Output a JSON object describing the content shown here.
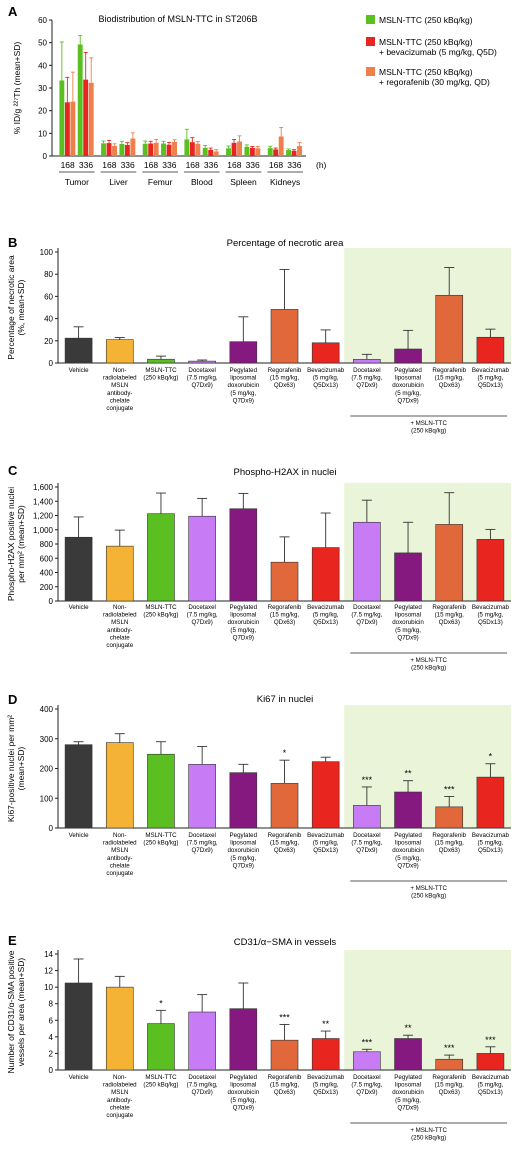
{
  "colors": {
    "bar": "#222222",
    "axis": "#222222",
    "green": "#5bbf21",
    "red": "#e8251e",
    "orange": "#ef7f4b",
    "dark_gray": "#3a3a3a",
    "yellow": "#f5b335",
    "lilac": "#c77bf4",
    "purple": "#86197f",
    "orange_dark": "#e0683b",
    "highlight": "#e9f4d8"
  },
  "common_labels": {
    "categories": [
      "Vehicle",
      "Non-\nradiolabeled\nMSLN\nantibody-\nchelate\nconjugate",
      "MSLN-TTC\n(250 kBq/kg)",
      "Docetaxel\n(7.5 mg/kg,\nQ7Dx9)",
      "Pegylated\nliposomal\ndoxorubicin\n(5 mg/kg,\nQ7Dx9)",
      "Regorafenib\n(15 mg/kg,\nQDx63)",
      "Bevacizumab\n(5 mg/kg,\nQ5Dx13)",
      "Docetaxel\n(7.5 mg/kg,\nQ7Dx9)",
      "Pegylated\nliposomal\ndoxorubicin\n(5 mg/kg,\nQ7Dx9)",
      "Regorafenib\n(15 mg/kg,\nQDx63)",
      "Bevacizumab\n(5 mg/kg,\nQ5Dx13)"
    ],
    "combo_label": "+ MSLN-TTC\n(250 kBq/kg)"
  },
  "chart_data": [
    {
      "panel": "A",
      "type": "bar",
      "title": "Biodistribution of MSLN-TTC in ST206B",
      "ylabel": "% ID/g ²²⁷Th (mean+SD)",
      "xlabel_unit": "(h)",
      "ylim": [
        0,
        60
      ],
      "yticks": [
        0,
        10,
        20,
        30,
        40,
        50,
        60
      ],
      "groups": [
        "Tumor",
        "Liver",
        "Femur",
        "Blood",
        "Spleen",
        "Kidneys"
      ],
      "timepoints": [
        "168",
        "336"
      ],
      "series": [
        {
          "name": "MSLN-TTC (250 kBq/kg)",
          "color_key": "green",
          "values": [
            [
              33.3,
              49.2
            ],
            [
              5.6,
              5.3
            ],
            [
              5.4,
              5.5
            ],
            [
              7.3,
              3.6
            ],
            [
              3.4,
              4.1
            ],
            [
              3.5,
              2.6
            ]
          ],
          "errors": [
            [
              17.0,
              4.0
            ],
            [
              1.0,
              1.2
            ],
            [
              1.2,
              1.0
            ],
            [
              4.5,
              1.0
            ],
            [
              1.0,
              0.8
            ],
            [
              0.8,
              0.5
            ]
          ]
        },
        {
          "name": "MSLN-TTC (250 kBq/kg)\n+ bevacizumab (5 mg/kg, Q5D)",
          "color_key": "red",
          "values": [
            [
              23.7,
              33.7
            ],
            [
              5.7,
              4.9
            ],
            [
              5.5,
              5.0
            ],
            [
              6.1,
              2.7
            ],
            [
              5.8,
              3.6
            ],
            [
              2.9,
              2.3
            ]
          ],
          "errors": [
            [
              11.0,
              12.0
            ],
            [
              1.2,
              1.0
            ],
            [
              1.0,
              1.0
            ],
            [
              2.0,
              0.8
            ],
            [
              1.5,
              0.6
            ],
            [
              0.6,
              0.5
            ]
          ]
        },
        {
          "name": "MSLN-TTC (250 kBq/kg)\n+ regorafenib (30 mg/kg, QD)",
          "color_key": "orange",
          "values": [
            [
              24.0,
              32.3
            ],
            [
              4.4,
              7.7
            ],
            [
              5.8,
              6.2
            ],
            [
              5.4,
              2.0
            ],
            [
              6.4,
              3.4
            ],
            [
              8.6,
              4.4
            ]
          ],
          "errors": [
            [
              13.0,
              11.0
            ],
            [
              1.0,
              2.5
            ],
            [
              1.5,
              1.0
            ],
            [
              1.0,
              0.8
            ],
            [
              2.5,
              0.8
            ],
            [
              4.0,
              1.5
            ]
          ]
        }
      ]
    },
    {
      "panel": "B",
      "type": "bar",
      "title": "Percentage of necrotic area",
      "ylabel": "Percentage of necrotic area\n(%, mean+SD)",
      "ylim": [
        0,
        100
      ],
      "yticks": [
        0,
        20,
        40,
        60,
        80,
        100
      ],
      "values": [
        22.4,
        21.0,
        3.4,
        1.7,
        19.2,
        48.3,
        18.2,
        3.3,
        12.6,
        61.0,
        23.2
      ],
      "errors": [
        10.2,
        2.0,
        2.8,
        1.0,
        22.4,
        36.0,
        11.6,
        4.5,
        16.8,
        25.0,
        7.3
      ],
      "annotations": [
        "",
        "",
        "",
        "",
        "",
        "",
        "",
        "",
        "",
        "",
        ""
      ]
    },
    {
      "panel": "C",
      "type": "bar",
      "title": "Phospho-H2AX in nuclei",
      "ylabel": "Phospho-H2AX positive nuclei\nper mm² (mean+SD)",
      "ylim": [
        0,
        1600
      ],
      "yticks": [
        0,
        200,
        400,
        600,
        800,
        1000,
        1200,
        1400,
        1600
      ],
      "ytick_labels": [
        "0",
        "200",
        "400",
        "600",
        "800",
        "1,000",
        "1,200",
        "1,400",
        "1,600"
      ],
      "values": [
        895,
        770,
        1225,
        1190,
        1295,
        545,
        750,
        1105,
        675,
        1075,
        865
      ],
      "errors": [
        285,
        225,
        290,
        250,
        215,
        355,
        485,
        310,
        430,
        445,
        140
      ],
      "annotations": [
        "",
        "",
        "",
        "",
        "",
        "",
        "",
        "",
        "",
        "",
        ""
      ]
    },
    {
      "panel": "D",
      "type": "bar",
      "title": "Ki67 in nuclei",
      "ylabel": "Ki67-positive nuclei per mm²\n(mean+SD)",
      "ylim": [
        0,
        400
      ],
      "yticks": [
        0,
        100,
        200,
        300,
        400
      ],
      "values": [
        280,
        287,
        248,
        214,
        186,
        150,
        223,
        76,
        121,
        71,
        171
      ],
      "errors": [
        10,
        30,
        42,
        60,
        28,
        78,
        15,
        62,
        38,
        35,
        45
      ],
      "annotations": [
        "",
        "",
        "",
        "",
        "",
        "*",
        "",
        "***",
        "**",
        "***",
        "*"
      ]
    },
    {
      "panel": "E",
      "type": "bar",
      "title": "CD31/α−SMA in vessels",
      "ylabel": "Number of CD31/α-SMA positive\nvessels per area (mean+SD)",
      "ylim": [
        0,
        14
      ],
      "yticks": [
        0,
        2,
        4,
        6,
        8,
        10,
        12,
        14
      ],
      "values": [
        10.5,
        10.0,
        5.6,
        7.0,
        7.4,
        3.6,
        3.8,
        2.2,
        3.8,
        1.3,
        2.0
      ],
      "errors": [
        2.9,
        1.3,
        1.6,
        2.1,
        3.1,
        1.9,
        0.9,
        0.3,
        0.4,
        0.5,
        0.8
      ],
      "annotations": [
        "",
        "",
        "*",
        "",
        "",
        "***",
        "**",
        "***",
        "**",
        "***",
        "***"
      ]
    }
  ]
}
